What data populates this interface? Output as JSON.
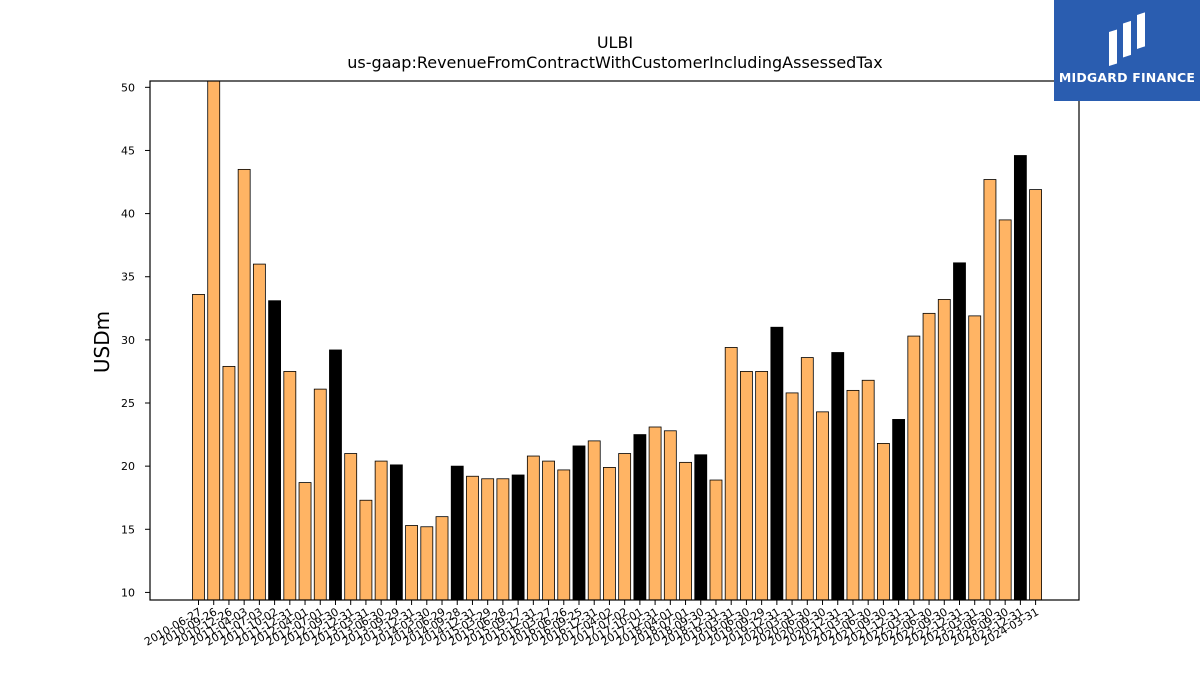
{
  "chart_data": {
    "type": "bar",
    "title": "ULBI",
    "subtitle": "us-gaap:RevenueFromContractWithCustomerIncludingAssessedTax",
    "xlabel": "",
    "ylabel": "USDm",
    "ylim": [
      9.4,
      50.5
    ],
    "yticks": [
      10,
      15,
      20,
      25,
      30,
      35,
      40,
      45,
      50
    ],
    "grid": false,
    "categories": [
      "2010-06-27",
      "2010-09-26",
      "2010-12-26",
      "2011-04-03",
      "2011-07-03",
      "2011-10-02",
      "2011-12-31",
      "2012-04-01",
      "2012-07-01",
      "2012-09-30",
      "2012-12-31",
      "2013-03-31",
      "2013-06-30",
      "2013-09-29",
      "2013-12-31",
      "2014-03-30",
      "2014-06-29",
      "2014-09-28",
      "2014-12-31",
      "2015-03-29",
      "2015-06-28",
      "2015-09-27",
      "2015-12-31",
      "2016-03-27",
      "2016-06-26",
      "2016-09-25",
      "2016-12-31",
      "2017-04-02",
      "2017-07-02",
      "2017-10-01",
      "2017-12-31",
      "2018-04-01",
      "2018-07-01",
      "2018-09-30",
      "2018-12-31",
      "2019-03-31",
      "2019-06-30",
      "2019-09-29",
      "2019-12-31",
      "2020-03-31",
      "2020-06-30",
      "2020-09-30",
      "2020-12-31",
      "2021-03-31",
      "2021-06-30",
      "2021-09-30",
      "2021-12-31",
      "2022-03-31",
      "2022-06-30",
      "2022-09-30",
      "2022-12-31",
      "2023-03-31",
      "2023-06-30",
      "2023-09-30",
      "2023-12-31",
      "2024-03-31"
    ],
    "values": [
      33.6,
      50.5,
      27.9,
      43.5,
      36.0,
      33.1,
      27.5,
      18.7,
      26.1,
      29.2,
      21.0,
      17.3,
      20.4,
      20.1,
      15.3,
      15.2,
      16.0,
      20.0,
      19.2,
      19.0,
      19.0,
      19.3,
      20.8,
      20.4,
      19.7,
      21.6,
      22.0,
      19.9,
      21.0,
      22.5,
      23.1,
      22.8,
      20.3,
      20.9,
      18.9,
      29.4,
      27.5,
      27.5,
      31.0,
      25.8,
      28.6,
      24.3,
      29.0,
      26.0,
      26.8,
      21.8,
      23.7,
      30.3,
      32.1,
      33.2,
      36.1,
      31.9,
      42.7,
      39.5,
      44.6,
      41.9
    ],
    "highlighted": [
      false,
      false,
      false,
      false,
      false,
      true,
      false,
      false,
      false,
      true,
      false,
      false,
      false,
      true,
      false,
      false,
      false,
      true,
      false,
      false,
      false,
      true,
      false,
      false,
      false,
      true,
      false,
      false,
      false,
      true,
      false,
      false,
      false,
      true,
      false,
      false,
      false,
      false,
      true,
      false,
      false,
      false,
      true,
      false,
      false,
      false,
      true,
      false,
      false,
      false,
      true,
      false,
      false,
      false,
      true,
      false
    ],
    "colors": {
      "bar": "#ffb464",
      "highlight": "#000000",
      "edge": "#000000"
    }
  },
  "logo": {
    "text": "MIDGARD FINANCE",
    "background": "#2a5db0"
  }
}
